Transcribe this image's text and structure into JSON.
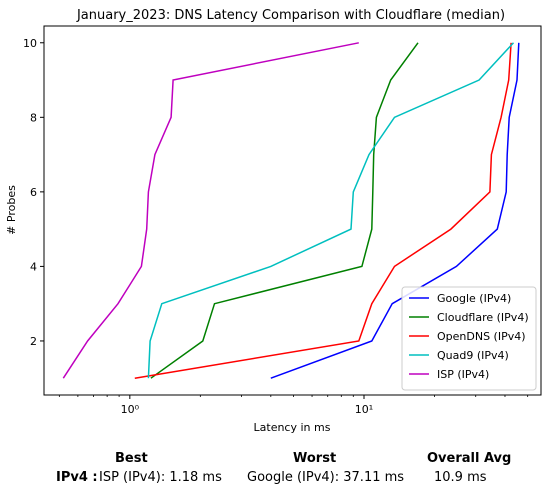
{
  "chart_data": {
    "type": "line",
    "title": "January_2023: DNS Latency Comparison with Cloudflare (median)",
    "xlabel": "Latency in ms",
    "ylabel": "# Probes",
    "xscale": "log",
    "xlim": [
      0.43,
      57
    ],
    "ylim": [
      0.55,
      10.45
    ],
    "x_ticks": [
      1,
      10
    ],
    "x_tick_labels": [
      "10⁰",
      "10¹"
    ],
    "y_ticks": [
      2,
      4,
      6,
      8,
      10
    ],
    "grid": false,
    "legend_position": "lower right",
    "series": [
      {
        "name": "Google (IPv4)",
        "color": "#0000ff",
        "x": [
          4.0,
          10.8,
          13.2,
          24.8,
          37.1,
          40.5,
          40.9,
          41.7,
          45.0,
          45.8
        ],
        "y": [
          1,
          2,
          3,
          4,
          5,
          6,
          7,
          8,
          9,
          10
        ]
      },
      {
        "name": "Cloudflare (IPv4)",
        "color": "#008000",
        "x": [
          1.23,
          2.05,
          2.3,
          9.8,
          10.8,
          10.9,
          11.0,
          11.3,
          13.0,
          17.0
        ],
        "y": [
          1,
          2,
          3,
          4,
          5,
          6,
          7,
          8,
          9,
          10
        ]
      },
      {
        "name": "OpenDNS (IPv4)",
        "color": "#ff0000",
        "x": [
          1.05,
          9.5,
          10.8,
          13.5,
          23.5,
          34.5,
          35.0,
          38.5,
          41.5,
          42.5
        ],
        "y": [
          1,
          2,
          3,
          4,
          5,
          6,
          7,
          8,
          9,
          10
        ]
      },
      {
        "name": "Quad9 (IPv4)",
        "color": "#00bfbf",
        "x": [
          1.2,
          1.22,
          1.37,
          4.0,
          8.8,
          9.0,
          10.5,
          13.5,
          31.0,
          43.5
        ],
        "y": [
          1,
          2,
          3,
          4,
          5,
          6,
          7,
          8,
          9,
          10
        ]
      },
      {
        "name": "ISP (IPv4)",
        "color": "#bf00bf",
        "x": [
          0.52,
          0.66,
          0.89,
          1.12,
          1.18,
          1.2,
          1.28,
          1.5,
          1.53,
          9.5
        ],
        "y": [
          1,
          2,
          3,
          4,
          5,
          6,
          7,
          8,
          9,
          10
        ]
      }
    ]
  },
  "summary": {
    "headers": {
      "best": "Best",
      "worst": "Worst",
      "avg": "Overall Avg"
    },
    "row_label": "IPv4 :",
    "best": "ISP (IPv4): 1.18 ms",
    "worst": "Google (IPv4): 37.11 ms",
    "avg": "10.9 ms"
  }
}
